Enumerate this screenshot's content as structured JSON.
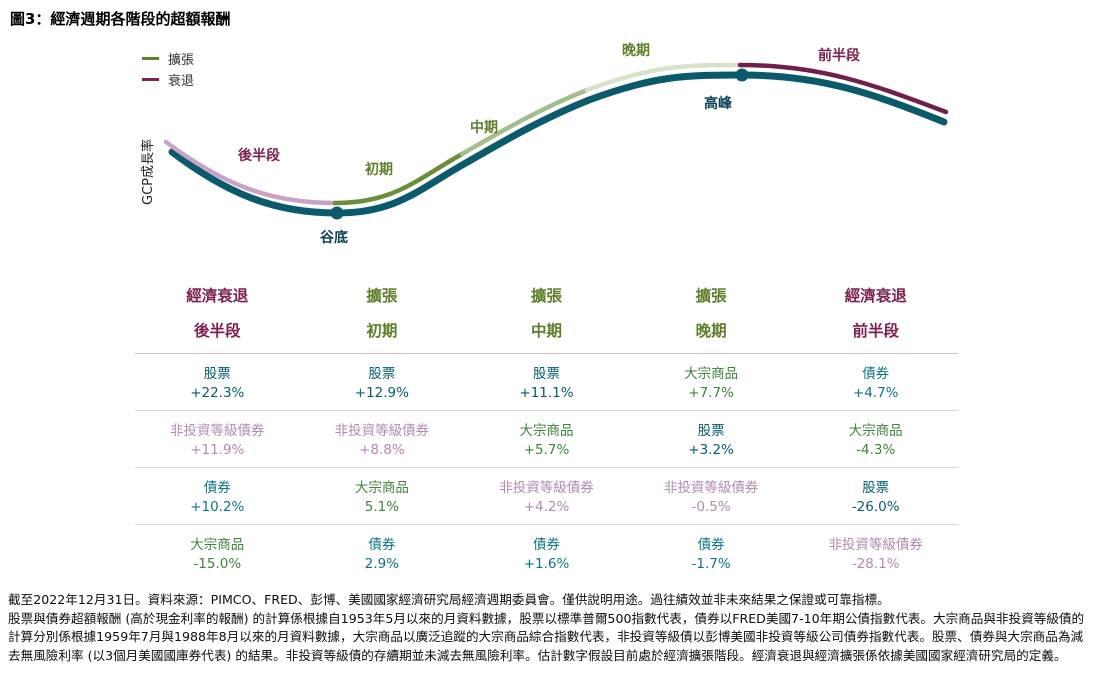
{
  "title": "圖3：經濟週期各階段的超額報酬",
  "y_axis_label": "GCP成長率",
  "legend": {
    "expansion_label": "擴張",
    "recession_label": "衰退"
  },
  "curve_labels": {
    "second_half": "後半段",
    "early": "初期",
    "mid": "中期",
    "late": "晚期",
    "first_half": "前半段",
    "peak": "高峰",
    "trough": "谷底"
  },
  "colors": {
    "curve_main": "#0a5a6c",
    "curve_recession_late": "#c9a3c6",
    "curve_expansion_early": "#6d8c3c",
    "curve_expansion_mid": "#a3bd8b",
    "curve_expansion_late": "#d6e2ca",
    "curve_recession_early": "#6e1f4b",
    "expansion": "#5f7f2c",
    "recession": "#7c2250",
    "pivot": "#0c4356",
    "stocks": "#045e6b",
    "bonds": "#0a7683",
    "commodities": "#3f823d",
    "high_yield": "#b28ab0"
  },
  "chart_data": {
    "type": "line",
    "title": "經濟週期各階段的超額報酬",
    "ylabel": "GCP成長率",
    "annotations": [
      "後半段",
      "初期",
      "中期",
      "晚期",
      "前半段",
      "高峰",
      "谷底"
    ],
    "legend_entries": [
      "擴張",
      "衰退"
    ],
    "phases": [
      "經濟衰退 後半段",
      "擴張 初期",
      "擴張 中期",
      "擴張 晚期",
      "經濟衰退 前半段"
    ],
    "unit": "%（超額報酬）",
    "series": [
      {
        "name": "股票",
        "values": [
          22.3,
          12.9,
          11.1,
          3.2,
          -26.0
        ]
      },
      {
        "name": "非投資等級債券",
        "values": [
          11.9,
          8.8,
          4.2,
          -0.5,
          -28.1
        ]
      },
      {
        "name": "債券",
        "values": [
          10.2,
          2.9,
          1.6,
          -1.7,
          4.7
        ]
      },
      {
        "name": "大宗商品",
        "values": [
          -15.0,
          5.1,
          5.7,
          7.7,
          -4.3
        ]
      }
    ]
  },
  "table": {
    "columns": [
      {
        "phase": "經濟衰退",
        "stage": "後半段",
        "kind": "recession"
      },
      {
        "phase": "擴張",
        "stage": "初期",
        "kind": "expansion"
      },
      {
        "phase": "擴張",
        "stage": "中期",
        "kind": "expansion"
      },
      {
        "phase": "擴張",
        "stage": "晚期",
        "kind": "expansion"
      },
      {
        "phase": "經濟衰退",
        "stage": "前半段",
        "kind": "recession"
      }
    ],
    "rows": [
      [
        {
          "asset": "股票",
          "value": "+22.3%",
          "kind": "stocks"
        },
        {
          "asset": "股票",
          "value": "+12.9%",
          "kind": "stocks"
        },
        {
          "asset": "股票",
          "value": "+11.1%",
          "kind": "stocks"
        },
        {
          "asset": "大宗商品",
          "value": "+7.7%",
          "kind": "commodities"
        },
        {
          "asset": "債券",
          "value": "+4.7%",
          "kind": "bonds"
        }
      ],
      [
        {
          "asset": "非投資等級債券",
          "value": "+11.9%",
          "kind": "high_yield"
        },
        {
          "asset": "非投資等級債券",
          "value": "+8.8%",
          "kind": "high_yield"
        },
        {
          "asset": "大宗商品",
          "value": "+5.7%",
          "kind": "commodities"
        },
        {
          "asset": "股票",
          "value": "+3.2%",
          "kind": "stocks"
        },
        {
          "asset": "大宗商品",
          "value": "-4.3%",
          "kind": "commodities"
        }
      ],
      [
        {
          "asset": "債券",
          "value": "+10.2%",
          "kind": "bonds"
        },
        {
          "asset": "大宗商品",
          "value": "5.1%",
          "kind": "commodities"
        },
        {
          "asset": "非投資等級債券",
          "value": "+4.2%",
          "kind": "high_yield"
        },
        {
          "asset": "非投資等級債券",
          "value": "-0.5%",
          "kind": "high_yield"
        },
        {
          "asset": "股票",
          "value": "-26.0%",
          "kind": "stocks"
        }
      ],
      [
        {
          "asset": "大宗商品",
          "value": "-15.0%",
          "kind": "commodities"
        },
        {
          "asset": "債券",
          "value": "2.9%",
          "kind": "bonds"
        },
        {
          "asset": "債券",
          "value": "+1.6%",
          "kind": "bonds"
        },
        {
          "asset": "債券",
          "value": "-1.7%",
          "kind": "bonds"
        },
        {
          "asset": "非投資等級債券",
          "value": "-28.1%",
          "kind": "high_yield"
        }
      ]
    ]
  },
  "footnotes": [
    "截至2022年12月31日。資料來源：PIMCO、FRED、彭博、美國國家經濟研究局經濟週期委員會。僅供說明用途。過往績效並非未來結果之保證或可靠指標。",
    "股票與債券超額報酬 (高於現金利率的報酬) 的計算係根據自1953年5月以來的月資料數據，股票以標準普爾500指數代表，債券以FRED美國7-10年期公債指數代表。大宗商品與非投資等級債的計算分別係根據1959年7月與1988年8月以來的月資料數據，大宗商品以廣泛追蹤的大宗商品綜合指數代表，非投資等級債以彭博美國非投資等級公司債券指數代表。股票、債券與大宗商品為減去無風險利率 (以3個月美國國庫券代表) 的結果。非投資等級債的存續期並未減去無風險利率。估計數字假設目前處於經濟擴張階段。經濟衰退與經濟擴張係依據美國國家經濟研究局的定義。"
  ]
}
